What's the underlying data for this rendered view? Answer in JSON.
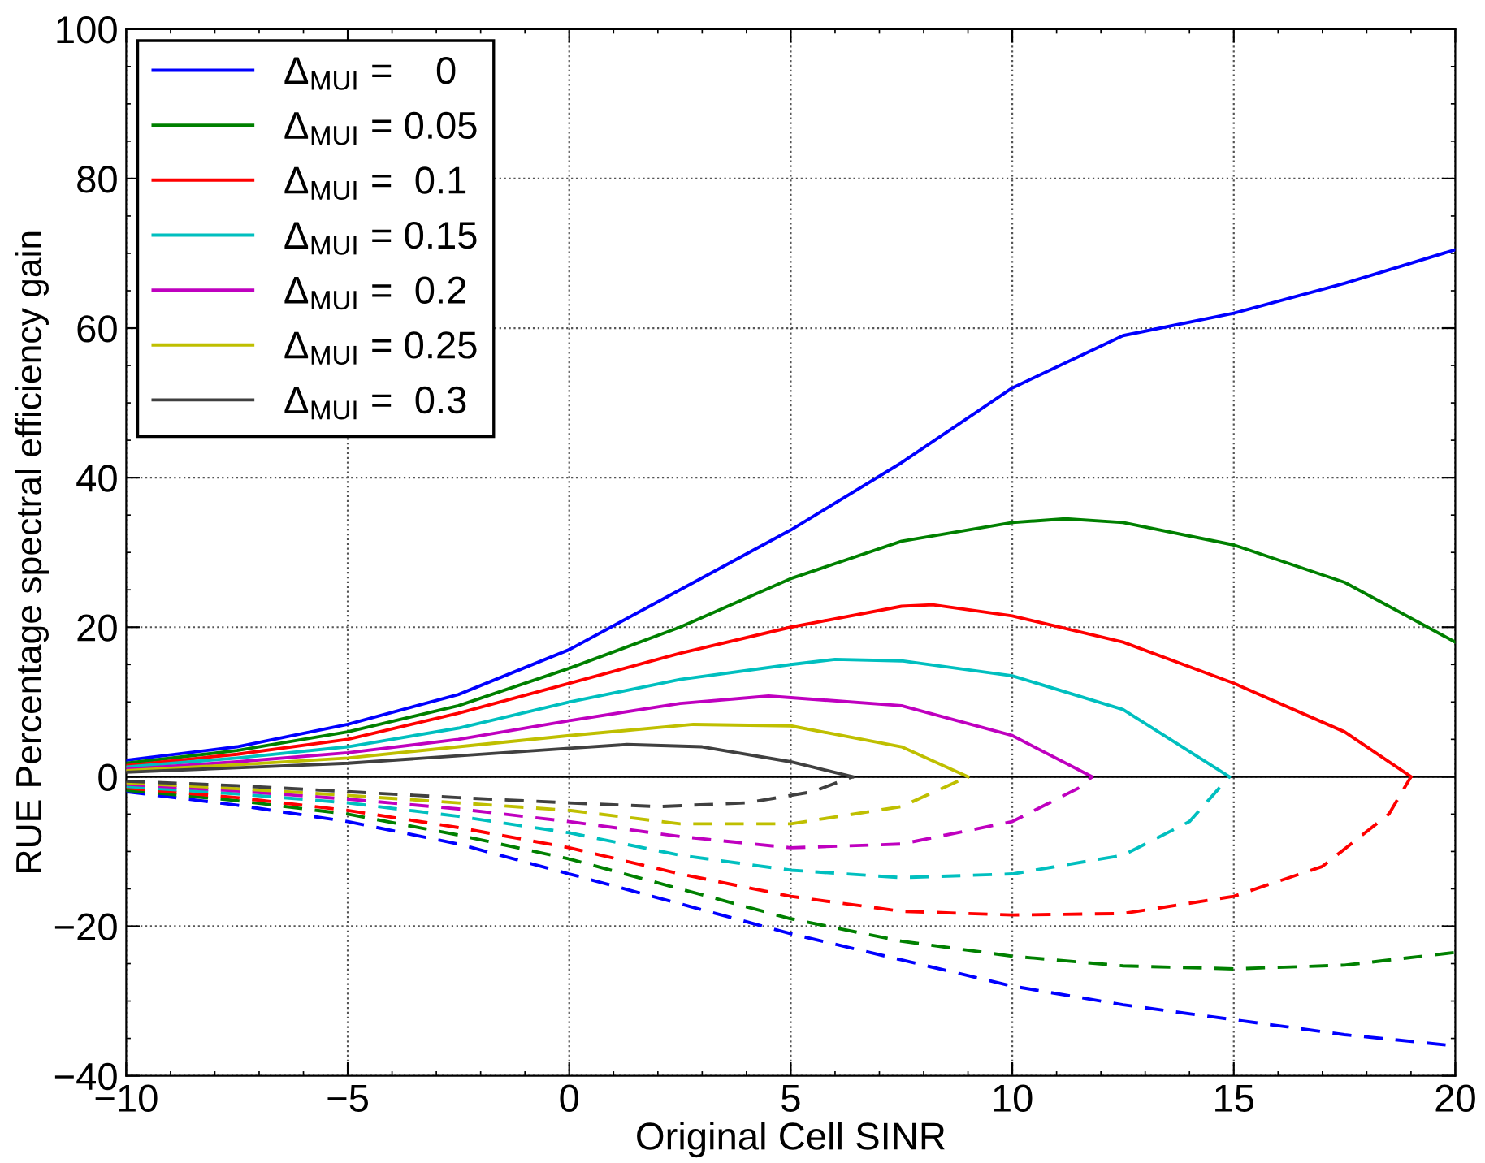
{
  "chart_data": {
    "type": "line",
    "xlabel": "Original Cell SINR",
    "ylabel": "RUE Percentage spectral efficiency gain",
    "xlim": [
      -10,
      20
    ],
    "xticks": [
      {
        "value": -10,
        "label": "−10"
      },
      {
        "value": -5,
        "label": "−5"
      },
      0,
      5,
      10,
      15,
      20
    ],
    "ylim": [
      -40,
      100
    ],
    "yticks": [
      {
        "value": -40,
        "label": "−40"
      },
      {
        "value": -20,
        "label": "−20"
      },
      0,
      20,
      40,
      60,
      80,
      100
    ],
    "grid": true,
    "legend": "top left",
    "marker": "none",
    "ref_lines": [
      {
        "axis": "y",
        "value": 0,
        "color": "#000000",
        "line_style": "solid"
      }
    ],
    "series": [
      {
        "name": "Δ$_{MUI}$ =    0",
        "color": "#0000ff",
        "line_style": "solid",
        "x": [
          -10,
          -7.5,
          -5,
          -2.5,
          0,
          2.5,
          5,
          7.5,
          10,
          12.5,
          15,
          17.5,
          20
        ],
        "values": [
          2.2,
          4,
          7,
          11,
          17,
          25,
          33,
          42,
          52,
          59,
          62,
          66,
          70.5
        ]
      },
      {
        "name": "Δ$_{MUI}$ = 0.05",
        "color": "#008000",
        "line_style": "solid",
        "x": [
          -10,
          -7.5,
          -5,
          -2.5,
          0,
          2.5,
          5,
          7.5,
          10,
          11.2,
          12.5,
          15,
          17.5,
          20
        ],
        "values": [
          1.8,
          3.5,
          6,
          9.5,
          14.5,
          20,
          26.5,
          31.5,
          34,
          34.5,
          34,
          31,
          26,
          18
        ]
      },
      {
        "name": "Δ$_{MUI}$ =  0.1",
        "color": "#ff0000",
        "line_style": "solid",
        "x": [
          -10,
          -7.5,
          -5,
          -2.5,
          0,
          2.5,
          5,
          7.5,
          8.2,
          10,
          12.5,
          15,
          17.5,
          19
        ],
        "values": [
          1.5,
          3,
          5,
          8.5,
          12.5,
          16.5,
          20,
          22.8,
          23,
          21.5,
          18,
          12.5,
          6,
          0
        ]
      },
      {
        "name": "Δ$_{MUI}$ = 0.15",
        "color": "#00bfbf",
        "line_style": "solid",
        "x": [
          -10,
          -7.5,
          -5,
          -2.5,
          0,
          2.5,
          5,
          6,
          7.5,
          10,
          12.5,
          14.9
        ],
        "values": [
          1.3,
          2.5,
          4,
          6.5,
          10,
          13,
          15,
          15.7,
          15.5,
          13.5,
          9,
          0
        ]
      },
      {
        "name": "Δ$_{MUI}$ =  0.2",
        "color": "#bf00bf",
        "line_style": "solid",
        "x": [
          -10,
          -7.5,
          -5,
          -2.5,
          0,
          2.5,
          4.5,
          7.5,
          10,
          11.8
        ],
        "values": [
          1,
          2,
          3.2,
          5,
          7.5,
          9.8,
          10.8,
          9.5,
          5.5,
          0
        ]
      },
      {
        "name": "Δ$_{MUI}$ = 0.25",
        "color": "#bfbf00",
        "line_style": "solid",
        "x": [
          -10,
          -7.5,
          -5,
          -2.5,
          0,
          2.8,
          5,
          7.5,
          9
        ],
        "values": [
          0.8,
          1.6,
          2.5,
          4,
          5.5,
          7,
          6.8,
          4,
          0
        ]
      },
      {
        "name": "Δ$_{MUI}$ =  0.3",
        "color": "#404040",
        "line_style": "solid",
        "x": [
          -10,
          -7.5,
          -5,
          -2.5,
          0,
          1.3,
          3,
          5,
          6.4
        ],
        "values": [
          0.6,
          1.2,
          1.8,
          2.8,
          3.8,
          4.3,
          4,
          2,
          0
        ]
      },
      {
        "color": "#0000ff",
        "line_style": "dashed",
        "x": [
          -10,
          -7.5,
          -5,
          -2.5,
          0,
          2.5,
          5,
          7.5,
          10,
          12.5,
          15,
          17.5,
          20
        ],
        "values": [
          -2,
          -3.8,
          -6,
          -9,
          -13,
          -17,
          -21,
          -24.5,
          -28,
          -30.5,
          -32.5,
          -34.5,
          -36
        ]
      },
      {
        "color": "#008000",
        "line_style": "dashed",
        "x": [
          -10,
          -7.5,
          -5,
          -2.5,
          0,
          2.5,
          5,
          7.5,
          10,
          12.5,
          15,
          17.5,
          20
        ],
        "values": [
          -1.8,
          -3.2,
          -5,
          -7.8,
          -11,
          -15,
          -19,
          -22,
          -24,
          -25.3,
          -25.7,
          -25.2,
          -23.5
        ]
      },
      {
        "color": "#ff0000",
        "line_style": "dashed",
        "x": [
          -10,
          -7.5,
          -5,
          -2.5,
          0,
          2.5,
          5,
          7.5,
          10,
          12.5,
          15,
          17,
          18.5,
          19
        ],
        "values": [
          -1.5,
          -2.8,
          -4.5,
          -6.8,
          -9.5,
          -13,
          -16,
          -18,
          -18.5,
          -18.3,
          -16,
          -12,
          -5,
          0
        ]
      },
      {
        "color": "#00bfbf",
        "line_style": "dashed",
        "x": [
          -10,
          -7.5,
          -5,
          -2.5,
          0,
          2.5,
          5,
          7.5,
          10,
          12.5,
          14,
          14.9
        ],
        "values": [
          -1.3,
          -2.3,
          -3.5,
          -5.3,
          -7.5,
          -10.5,
          -12.5,
          -13.5,
          -13,
          -10.5,
          -6,
          0
        ]
      },
      {
        "color": "#bf00bf",
        "line_style": "dashed",
        "x": [
          -10,
          -7.5,
          -5,
          -2.5,
          0,
          2.5,
          5,
          7.5,
          10,
          11.5,
          11.8
        ],
        "values": [
          -1,
          -1.9,
          -3,
          -4.3,
          -6,
          -8,
          -9.5,
          -9,
          -6,
          -1.5,
          0
        ]
      },
      {
        "color": "#bfbf00",
        "line_style": "dashed",
        "x": [
          -10,
          -7.5,
          -5,
          -2.5,
          0,
          2.5,
          5,
          7.5,
          9
        ],
        "values": [
          -0.8,
          -1.6,
          -2.5,
          -3.5,
          -4.5,
          -6.3,
          -6.3,
          -4,
          0
        ]
      },
      {
        "color": "#404040",
        "line_style": "dashed",
        "x": [
          -10,
          -7.5,
          -5,
          -2.5,
          0,
          2,
          4,
          5.5,
          6.4
        ],
        "values": [
          -0.6,
          -1.2,
          -2,
          -2.8,
          -3.5,
          -4,
          -3.5,
          -2,
          0
        ]
      }
    ]
  }
}
